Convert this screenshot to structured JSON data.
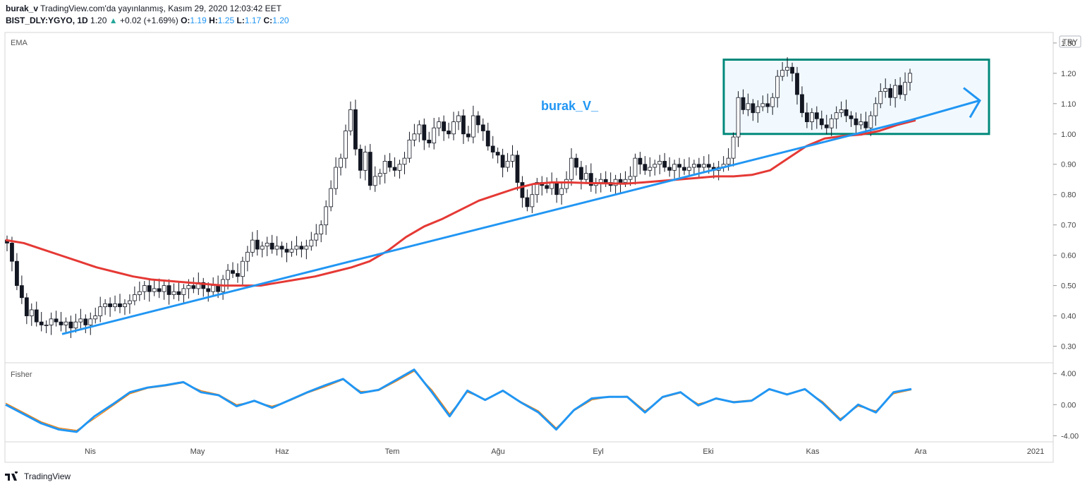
{
  "header": {
    "author": "burak_v",
    "published": "TradingView.com'da yayınlanmış, Kasım 29, 2020 12:03:42 EET",
    "symbol": "BIST_DLY:YGYO, 1D",
    "last": "1.20",
    "change": "+0.02 (+1.69%)",
    "o_label": "O:",
    "o_value": "1.19",
    "h_label": "H:",
    "h_value": "1.25",
    "l_label": "L:",
    "l_value": "1.17",
    "c_label": "C:",
    "c_value": "1.20"
  },
  "currency": "TRY",
  "watermark": "TradingView",
  "chart_data": [
    {
      "type": "candlestick",
      "indicator_label": "EMA",
      "annotation": "burak_V_",
      "ylim": [
        0.25,
        1.33
      ],
      "y_ticks": [
        "1.30",
        "1.20",
        "1.10",
        "1.00",
        "0.90",
        "0.80",
        "0.70",
        "0.60",
        "0.50",
        "0.40",
        "0.30"
      ],
      "x_ticks": [
        "Nis",
        "May",
        "Haz",
        "Tem",
        "Ağu",
        "Eyl",
        "Eki",
        "Kas",
        "Ara",
        "2021"
      ],
      "closes": [
        0.64,
        0.58,
        0.5,
        0.46,
        0.4,
        0.42,
        0.38,
        0.37,
        0.37,
        0.39,
        0.38,
        0.37,
        0.38,
        0.36,
        0.38,
        0.39,
        0.37,
        0.39,
        0.4,
        0.43,
        0.44,
        0.43,
        0.44,
        0.43,
        0.44,
        0.45,
        0.47,
        0.48,
        0.5,
        0.48,
        0.49,
        0.48,
        0.5,
        0.47,
        0.48,
        0.47,
        0.49,
        0.5,
        0.49,
        0.51,
        0.49,
        0.48,
        0.5,
        0.48,
        0.52,
        0.55,
        0.54,
        0.53,
        0.58,
        0.61,
        0.65,
        0.62,
        0.63,
        0.64,
        0.62,
        0.63,
        0.62,
        0.61,
        0.62,
        0.63,
        0.62,
        0.63,
        0.65,
        0.67,
        0.7,
        0.76,
        0.82,
        0.89,
        0.92,
        1.01,
        1.08,
        0.95,
        0.88,
        0.94,
        0.83,
        0.86,
        0.87,
        0.91,
        0.89,
        0.88,
        0.9,
        0.92,
        0.98,
        1.0,
        1.03,
        0.98,
        0.97,
        1.02,
        1.04,
        1.01,
        1.0,
        1.04,
        1.06,
        1.0,
        0.99,
        1.06,
        1.03,
        1.01,
        0.96,
        0.94,
        0.93,
        0.89,
        0.91,
        0.93,
        0.84,
        0.79,
        0.76,
        0.8,
        0.84,
        0.83,
        0.82,
        0.84,
        0.8,
        0.82,
        0.85,
        0.92,
        0.89,
        0.85,
        0.87,
        0.83,
        0.84,
        0.85,
        0.84,
        0.83,
        0.85,
        0.84,
        0.85,
        0.86,
        0.92,
        0.9,
        0.88,
        0.89,
        0.9,
        0.91,
        0.89,
        0.88,
        0.9,
        0.89,
        0.88,
        0.89,
        0.9,
        0.89,
        0.9,
        0.89,
        0.88,
        0.89,
        0.9,
        0.92,
        0.99,
        1.12,
        1.08,
        1.1,
        1.07,
        1.09,
        1.1,
        1.09,
        1.12,
        1.19,
        1.21,
        1.22,
        1.2,
        1.13,
        1.07,
        1.04,
        1.07,
        1.05,
        1.03,
        1.02,
        1.05,
        1.07,
        1.08,
        1.06,
        1.05,
        1.03,
        1.04,
        1.02,
        1.06,
        1.1,
        1.14,
        1.15,
        1.12,
        1.16,
        1.13,
        1.17,
        1.2
      ],
      "ema": [
        0.65,
        0.64,
        0.62,
        0.6,
        0.58,
        0.56,
        0.545,
        0.53,
        0.52,
        0.515,
        0.51,
        0.505,
        0.5,
        0.5,
        0.5,
        0.51,
        0.52,
        0.53,
        0.545,
        0.56,
        0.58,
        0.615,
        0.66,
        0.695,
        0.72,
        0.75,
        0.78,
        0.8,
        0.82,
        0.835,
        0.84,
        0.84,
        0.838,
        0.837,
        0.836,
        0.84,
        0.845,
        0.85,
        0.855,
        0.86,
        0.86,
        0.865,
        0.88,
        0.92,
        0.96,
        0.985,
        0.993,
        0.998,
        1.01,
        1.03,
        1.045
      ],
      "trendline_blue": [
        [
          0.376,
          0.34
        ],
        [
          0.948,
          1.045
        ]
      ],
      "range_box": {
        "low": 1.0,
        "high": 1.245
      },
      "arrow_to": 1.11
    },
    {
      "type": "line",
      "indicator_label": "Fisher",
      "ylim": [
        -4.6,
        5.2
      ],
      "y_ticks": [
        "4.00",
        "0.00",
        "-4.00"
      ],
      "series": [
        {
          "color": "#2196f3",
          "values": [
            0.0,
            -1.2,
            -2.4,
            -3.2,
            -3.5,
            -1.5,
            0.0,
            1.6,
            2.2,
            2.5,
            2.9,
            1.6,
            1.2,
            -0.2,
            0.5,
            -0.4,
            0.6,
            1.6,
            2.5,
            3.3,
            1.5,
            1.9,
            3.2,
            4.5,
            1.6,
            -1.5,
            1.8,
            0.6,
            1.8,
            0.3,
            -1.0,
            -3.2,
            -0.7,
            0.8,
            1.0,
            1.0,
            -1.0,
            1.0,
            1.6,
            -0.1,
            0.8,
            0.3,
            0.5,
            2.0,
            1.3,
            2.0,
            0.2,
            -2.0,
            0.0,
            -1.0,
            1.6,
            2.0
          ]
        },
        {
          "color": "#f57c00",
          "values": [
            0.2,
            -1.0,
            -2.2,
            -3.0,
            -3.3,
            -1.8,
            -0.2,
            1.4,
            2.1,
            2.4,
            2.8,
            1.8,
            1.3,
            0.0,
            0.4,
            -0.2,
            0.5,
            1.5,
            2.3,
            3.2,
            1.7,
            1.8,
            3.0,
            4.3,
            1.9,
            -1.2,
            1.6,
            0.7,
            1.7,
            0.4,
            -0.8,
            -3.0,
            -0.8,
            0.6,
            1.0,
            1.1,
            -0.8,
            0.9,
            1.5,
            0.1,
            0.7,
            0.4,
            0.6,
            1.9,
            1.4,
            1.9,
            0.4,
            -1.8,
            -0.2,
            -0.8,
            1.4,
            1.9
          ]
        }
      ]
    }
  ]
}
